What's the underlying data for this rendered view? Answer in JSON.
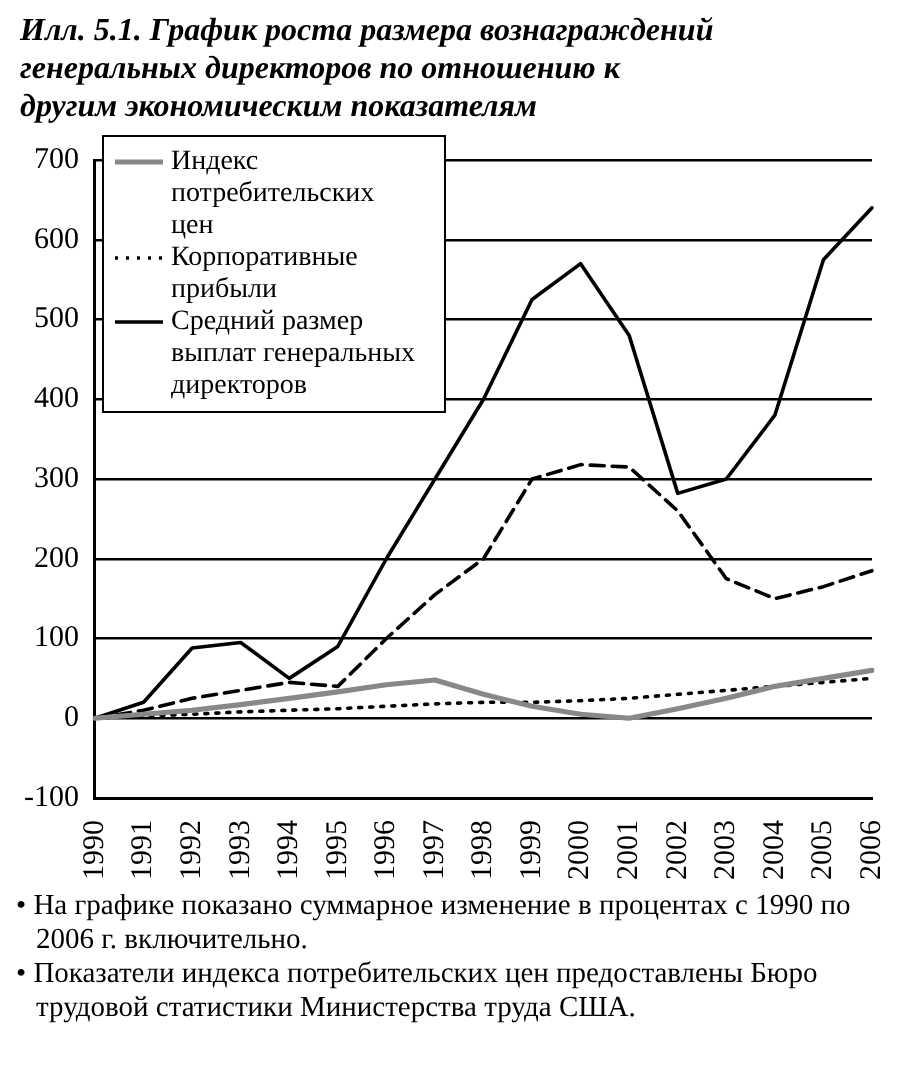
{
  "chart_data": {
    "type": "line",
    "title": "Илл. 5.1. График роста размера вознаграждений генеральных директоров по отношению к другим экономическим показателям",
    "categories": [
      "1990",
      "1991",
      "1992",
      "1993",
      "1994",
      "1995",
      "1996",
      "1997",
      "1998",
      "1999",
      "2000",
      "2001",
      "2002",
      "2003",
      "2004",
      "2005",
      "2006"
    ],
    "series": [
      {
        "name": "Индекс потребительских цен",
        "color": "#888888",
        "line_style": "solid",
        "values": [
          0,
          5,
          10,
          17,
          25,
          33,
          42,
          48,
          30,
          15,
          5,
          0,
          12,
          25,
          40,
          50,
          60
        ]
      },
      {
        "name": "Корпоративные прибыли",
        "color": "#000000",
        "line_style": "dotted",
        "values": [
          0,
          3,
          5,
          8,
          10,
          12,
          15,
          18,
          20,
          20,
          22,
          25,
          30,
          35,
          40,
          45,
          50
        ]
      },
      {
        "color": "#000000",
        "line_style": "dashed",
        "values": [
          0,
          10,
          25,
          35,
          45,
          40,
          100,
          155,
          200,
          300,
          318,
          315,
          260,
          175,
          150,
          165,
          185
        ]
      },
      {
        "name": "Средний размер выплат генеральных директоров",
        "color": "#000000",
        "line_style": "solid",
        "values": [
          0,
          20,
          88,
          95,
          50,
          90,
          200,
          300,
          400,
          525,
          570,
          480,
          282,
          300,
          380,
          575,
          640
        ]
      }
    ],
    "ylim": [
      -100,
      700
    ],
    "yticks": [
      -100,
      0,
      100,
      200,
      300,
      400,
      500,
      600,
      700
    ],
    "grid": "y",
    "legend": "top left",
    "marker": "none",
    "annotations": [
      "• На графике показано суммарное изменение в процентах с 1990 по 2006 г. включительно.",
      "• Показатели индекса потребительских цен предоставлены Бюро трудовой статистики Министерства труда США."
    ]
  }
}
